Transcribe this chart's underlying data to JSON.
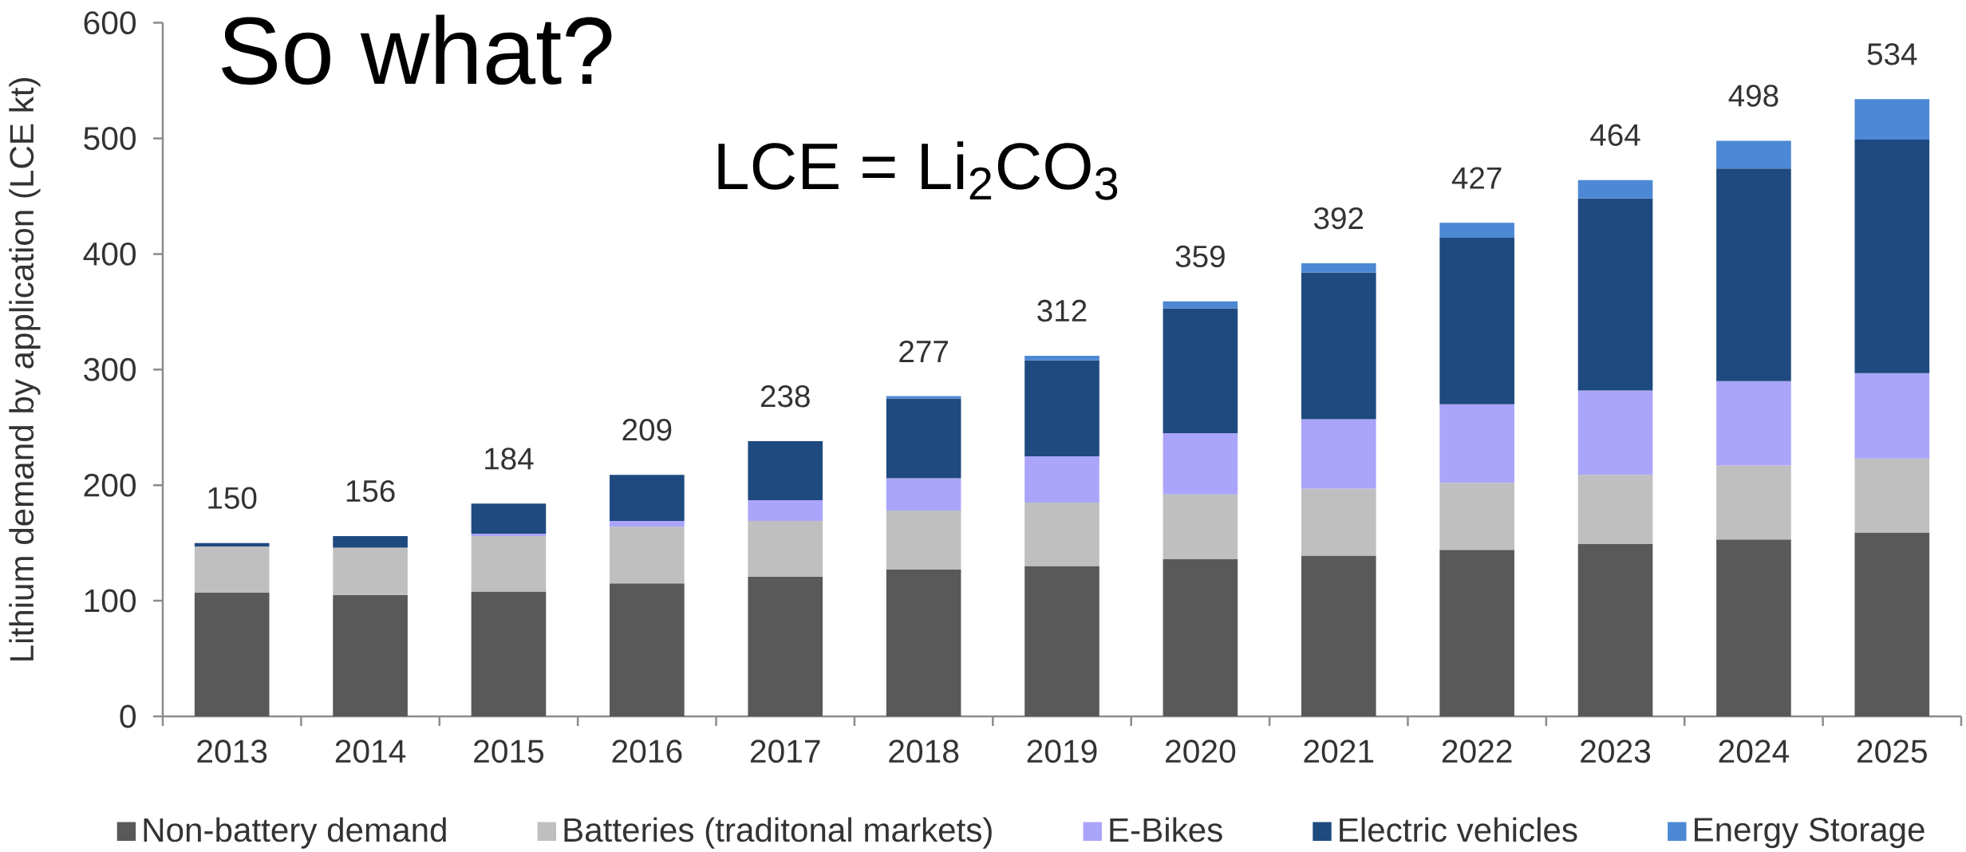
{
  "chart_data": {
    "type": "bar",
    "stacked": true,
    "title": "So what?",
    "annotations": [
      "LCE = Li$_{2}$CO$_{3}$"
    ],
    "ylabel": "Lithium demand by application (LCE kt)",
    "categories": [
      "2013",
      "2014",
      "2015",
      "2016",
      "2017",
      "2018",
      "2019",
      "2020",
      "2021",
      "2022",
      "2023",
      "2024",
      "2025"
    ],
    "series": [
      {
        "name": "Non-battery demand",
        "color": "#595959",
        "values": [
          107,
          105,
          108,
          115,
          121,
          127,
          130,
          136,
          139,
          144,
          149,
          153,
          159
        ]
      },
      {
        "name": "Batteries (traditonal markets)",
        "color": "#bfbfbf",
        "values": [
          40,
          41,
          48,
          49,
          48,
          51,
          55,
          56,
          58,
          58,
          60,
          64,
          64
        ]
      },
      {
        "name": "E-Bikes",
        "color": "#aaa5fa",
        "values": [
          null,
          null,
          2,
          5,
          18,
          28,
          40,
          53,
          60,
          68,
          73,
          73,
          74
        ]
      },
      {
        "name": "Electric vehicles",
        "color": "#1f4a7f",
        "values": [
          3,
          10,
          26,
          40,
          51,
          69,
          83,
          108,
          127,
          144,
          166,
          184,
          202
        ]
      },
      {
        "name": "Energy Storage",
        "color": "#4d88d4",
        "values": [
          null,
          null,
          null,
          null,
          null,
          2,
          4,
          6,
          8,
          13,
          16,
          24,
          35
        ]
      }
    ],
    "totals": [
      "150",
      "156",
      "184",
      "209",
      "238",
      "277",
      "312",
      "359",
      "392",
      "427",
      "464",
      "498",
      "534"
    ],
    "ylim": [
      0,
      600
    ],
    "yticks": [
      0,
      100,
      200,
      300,
      400,
      500,
      600
    ],
    "legend": "bottom"
  }
}
